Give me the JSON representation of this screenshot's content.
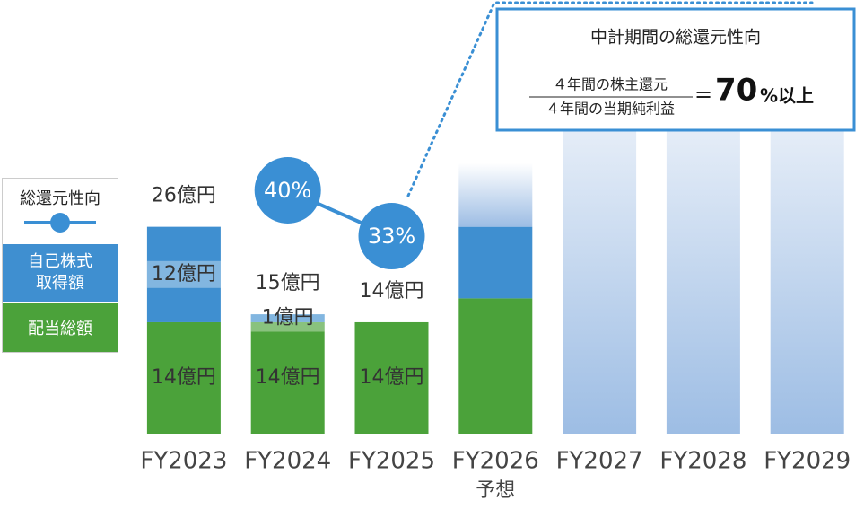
{
  "chart_data": {
    "type": "bar",
    "categories": [
      "FY2023",
      "FY2024",
      "FY2025",
      "FY2026",
      "FY2027",
      "FY2028",
      "FY2029"
    ],
    "forecast_label": "予想",
    "series": [
      {
        "name": "配当総額",
        "color": "#4ba23a",
        "values": [
          14,
          14,
          14,
          17,
          null,
          null,
          null
        ],
        "value_labels": [
          "14億円",
          "14億円",
          "14億円",
          null,
          null,
          null,
          null
        ]
      },
      {
        "name": "自己株式取得額",
        "color": "#3f8fd0",
        "values": [
          12,
          1,
          null,
          9,
          null,
          null,
          null
        ],
        "value_labels": [
          "12億円",
          "1億円",
          null,
          null,
          null,
          null,
          null
        ]
      },
      {
        "name": "総還元性向",
        "type": "line",
        "color": "#3a8fd4",
        "values": [
          null,
          40,
          33,
          null,
          null,
          null,
          null
        ],
        "value_labels": [
          null,
          "40%",
          "33%",
          null,
          null,
          null,
          null
        ]
      }
    ],
    "total_labels": [
      "26億円",
      "15億円",
      "14億円",
      null,
      null,
      null,
      null
    ],
    "forecast_bars": {
      "values": [
        null,
        null,
        null,
        8,
        43,
        43,
        43
      ],
      "color_top": "#eef3fa",
      "color_bottom": "#9dbde4"
    },
    "target": {
      "title": "中計期間の総還元性向",
      "numerator": "４年間の株主還元",
      "denominator": "４年間の当期純利益",
      "equals": "=",
      "value": 70,
      "suffix": "%以上"
    }
  }
}
